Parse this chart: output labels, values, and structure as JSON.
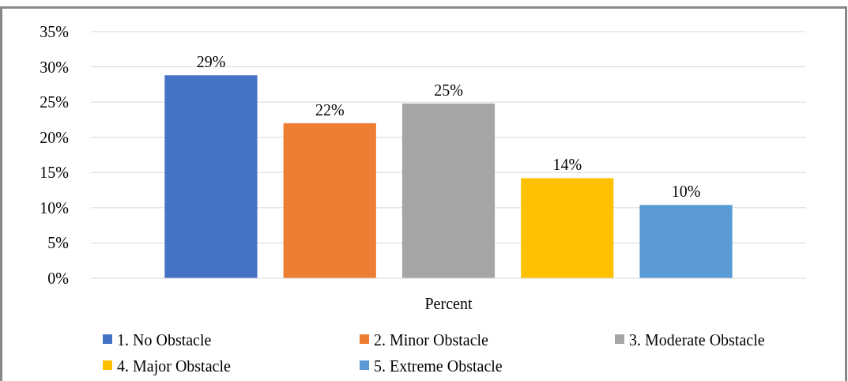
{
  "chart_data": {
    "type": "bar",
    "categories": [
      "Percent"
    ],
    "series": [
      {
        "name": "1. No Obstacle",
        "color": "#4472c4",
        "values": [
          28.8
        ],
        "value_labels": [
          "29%"
        ]
      },
      {
        "name": "2. Minor Obstacle",
        "color": "#ed7d31",
        "values": [
          22
        ],
        "value_labels": [
          "22%"
        ]
      },
      {
        "name": "3. Moderate Obstacle",
        "color": "#a5a5a5",
        "values": [
          24.8
        ],
        "value_labels": [
          "25%"
        ]
      },
      {
        "name": "4. Major Obstacle",
        "color": "#ffc000",
        "values": [
          14.2
        ],
        "value_labels": [
          "14%"
        ]
      },
      {
        "name": "5. Extreme Obstacle",
        "color": "#5b9bd5",
        "values": [
          10.4
        ],
        "value_labels": [
          "10%"
        ]
      }
    ],
    "ylim": [
      0,
      35
    ],
    "yticks": [
      {
        "value": 0,
        "label": "0%"
      },
      {
        "value": 5,
        "label": "5%"
      },
      {
        "value": 10,
        "label": "10%"
      },
      {
        "value": 15,
        "label": "15%"
      },
      {
        "value": 20,
        "label": "20%"
      },
      {
        "value": 25,
        "label": "25%"
      },
      {
        "value": 30,
        "label": "30%"
      },
      {
        "value": 35,
        "label": "35%"
      }
    ],
    "grid": "y",
    "legend": "bottom"
  }
}
